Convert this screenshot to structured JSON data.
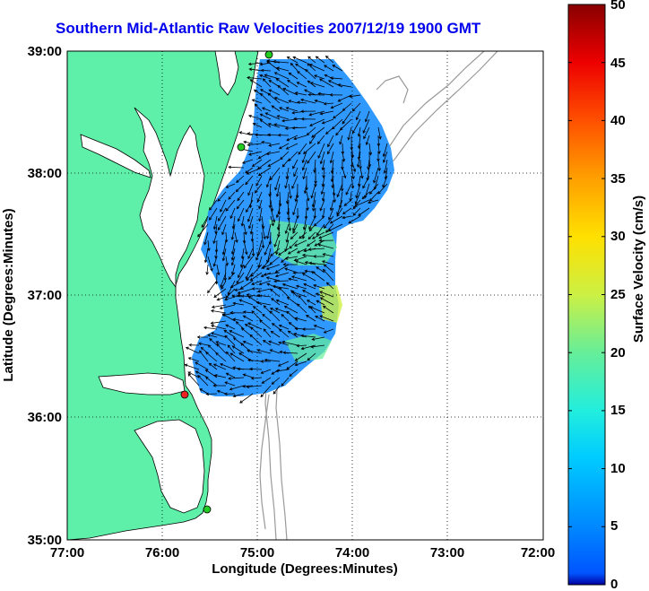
{
  "title": "Southern Mid-Atlantic Raw Velocities 2007/12/19 1900 GMT",
  "x_axis": {
    "label": "Longitude (Degrees:Minutes)",
    "ticks": [
      "77:00",
      "76:00",
      "75:00",
      "74:00",
      "73:00",
      "72:00"
    ]
  },
  "y_axis": {
    "label": "Latitude (Degrees:Minutes)",
    "ticks": [
      "39:00",
      "38:00",
      "37:00",
      "36:00",
      "35:00"
    ]
  },
  "colorbar": {
    "label": "Surface Velocity (cm/s)",
    "ticks": [
      "50",
      "45",
      "40",
      "35",
      "30",
      "25",
      "20",
      "15",
      "10",
      "5",
      "0"
    ],
    "min": 0,
    "max": 50,
    "colormap": "jet"
  },
  "map": {
    "lon_range": [
      -77,
      -72
    ],
    "lat_range": [
      35,
      39
    ],
    "land_color": "#5ef0a8",
    "velocity_field_color": "#1e90ff",
    "arrow_color": "#000000",
    "bathymetry_color": "#999999",
    "grid": "dotted"
  },
  "stations": [
    {
      "color": "#22cc22"
    },
    {
      "color": "#22cc22"
    },
    {
      "color": "#ee2222"
    },
    {
      "color": "#22cc22"
    }
  ]
}
